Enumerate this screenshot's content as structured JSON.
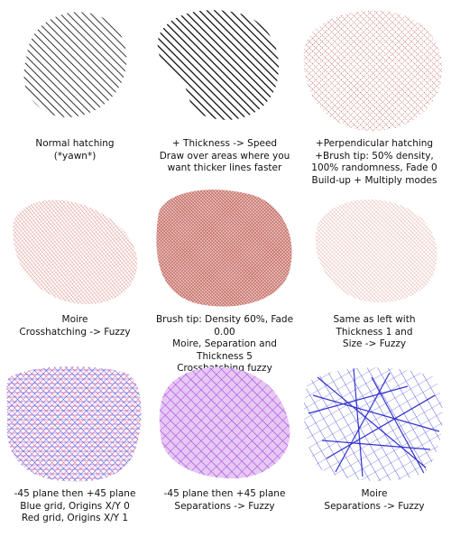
{
  "panels": [
    {
      "id": "p1",
      "caption": "Normal hatching\n(*yawn*)",
      "style": "hatch-black",
      "colors": {
        "primary": "#000000"
      }
    },
    {
      "id": "p2",
      "caption": "+ Thickness -> Speed\nDraw over areas where you\nwant thicker lines faster",
      "style": "hatch-black-thick",
      "colors": {
        "primary": "#000000"
      }
    },
    {
      "id": "p3",
      "caption": "+Perpendicular hatching\n+Brush tip: 50% density,\n100% randomness, Fade 0\nBuild-up + Multiply modes",
      "style": "cross-dotted",
      "colors": {
        "primary": "#b02a2a"
      }
    },
    {
      "id": "p4",
      "caption": "Moire\nCrosshatching -> Fuzzy",
      "style": "moire-fuzzy",
      "colors": {
        "primary": "#c0463c"
      }
    },
    {
      "id": "p5",
      "caption": "Brush tip: Density 60%, Fade 0.00\nMoire, Separation and Thickness 5\nCrosshatching fuzzy",
      "style": "dense-fuzzy",
      "colors": {
        "primary": "#b8473e"
      }
    },
    {
      "id": "p6",
      "caption": "Same as left with\nThickness 1 and\nSize -> Fuzzy",
      "style": "light-fuzzy",
      "colors": {
        "primary": "#c25a52"
      }
    },
    {
      "id": "p7",
      "caption": "-45 plane then +45 plane\nBlue grid, Origins X/Y 0\nRed grid, Origins X/Y 1",
      "style": "grid-blue-red",
      "colors": {
        "primary": "#3a3ad6",
        "secondary": "#e0306a"
      }
    },
    {
      "id": "p8",
      "caption": "-45 plane then +45 plane\nSeparations -> Fuzzy",
      "style": "grid-purple",
      "colors": {
        "primary": "#8a3ad8",
        "secondary": "#c04ae0"
      }
    },
    {
      "id": "p9",
      "caption": "Moire\nSeparations -> Fuzzy",
      "style": "blue-strokes",
      "colors": {
        "primary": "#2a2ad0"
      }
    }
  ]
}
